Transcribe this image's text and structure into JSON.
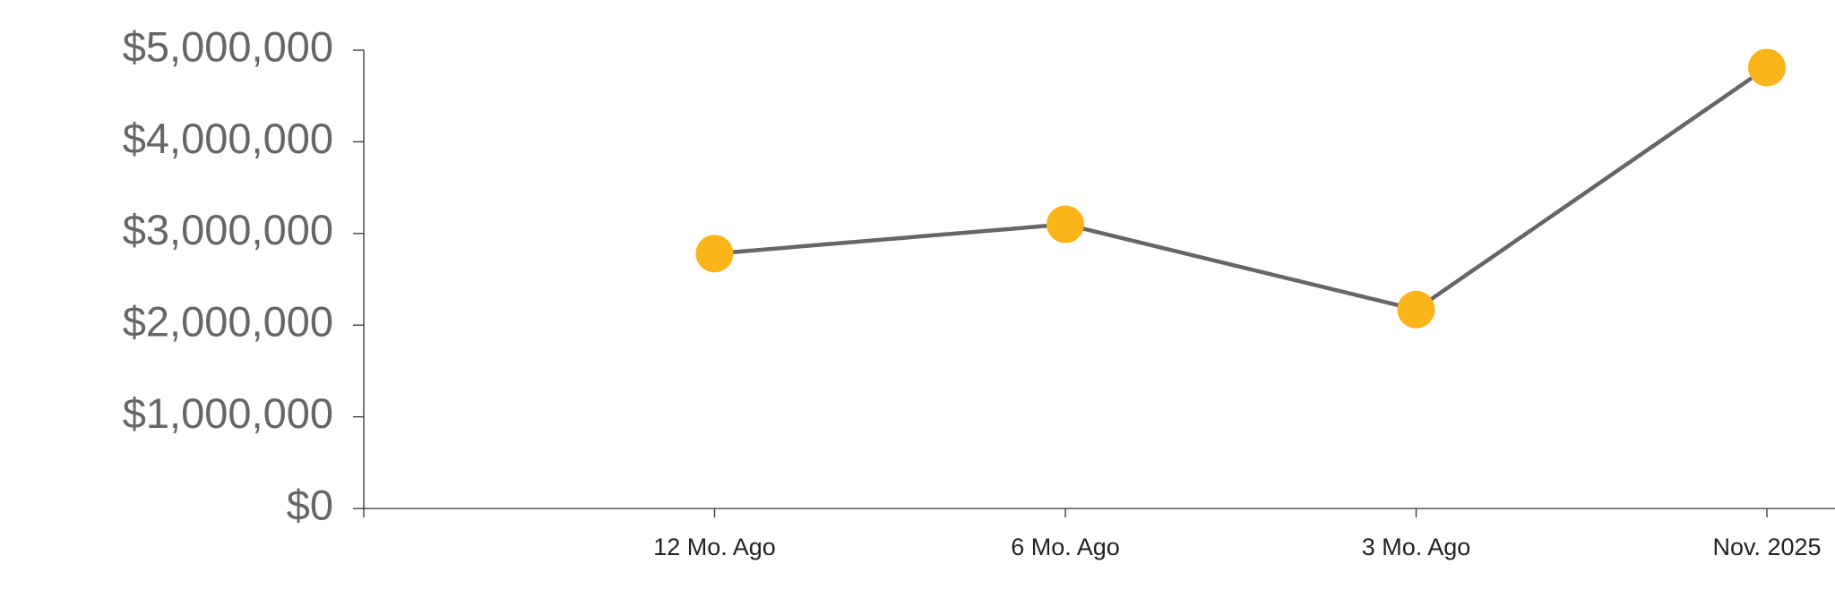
{
  "chart_data": {
    "type": "line",
    "categories": [
      null,
      "12 Mo. Ago",
      "6 Mo. Ago",
      "3 Mo. Ago",
      "Nov. 2025"
    ],
    "values": [
      null,
      2780000,
      3100000,
      2170000,
      4810000
    ],
    "line_color": "#666666",
    "marker_color": "#fbb41a",
    "ylim": [
      0,
      5000000
    ],
    "yticks": [
      {
        "value": 0,
        "label": "$0"
      },
      {
        "value": 1000000,
        "label": "$1,000,000"
      },
      {
        "value": 2000000,
        "label": "$2,000,000"
      },
      {
        "value": 3000000,
        "label": "$3,000,000"
      },
      {
        "value": 4000000,
        "label": "$4,000,000"
      },
      {
        "value": 5000000,
        "label": "$5,000,000"
      }
    ],
    "grid": false
  }
}
